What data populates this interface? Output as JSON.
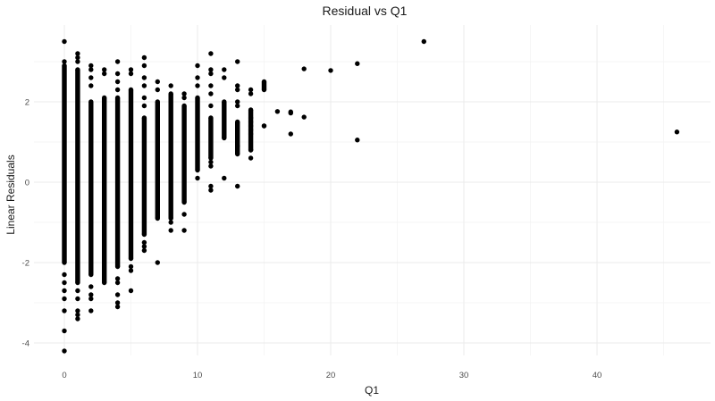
{
  "chart_data": {
    "type": "scatter",
    "title": "Residual vs Q1",
    "xlabel": "Q1",
    "ylabel": "Linear Residuals",
    "xlim": [
      -2.3,
      48.3
    ],
    "ylim": [
      -4.6,
      3.6
    ],
    "x_ticks": [
      0,
      10,
      20,
      30,
      40
    ],
    "x_tick_labels": [
      "0",
      "10",
      "20",
      "30",
      "40"
    ],
    "y_ticks": [
      -4,
      -2,
      0,
      2
    ],
    "y_tick_labels": [
      "-4",
      "-2",
      "0",
      "2"
    ],
    "grid": true,
    "legend": "none",
    "point_color": "#000000",
    "columns": [
      {
        "x": 0,
        "dense_min": -2.0,
        "dense_max": 2.9,
        "outliers": [
          3.5,
          3.0,
          -2.3,
          -2.5,
          -2.7,
          -2.9,
          -3.2,
          -3.7,
          -4.2
        ]
      },
      {
        "x": 1,
        "dense_min": -2.5,
        "dense_max": 2.8,
        "outliers": [
          3.2,
          3.1,
          3.0,
          -2.7,
          -2.9,
          -3.2,
          -3.3,
          -3.4
        ]
      },
      {
        "x": 2,
        "dense_min": -2.3,
        "dense_max": 2.0,
        "outliers": [
          2.9,
          2.8,
          2.6,
          2.4,
          -2.6,
          -2.8,
          -2.9,
          -3.2
        ]
      },
      {
        "x": 3,
        "dense_min": -2.5,
        "dense_max": 2.1,
        "outliers": [
          2.8,
          2.7
        ]
      },
      {
        "x": 4,
        "dense_min": -2.1,
        "dense_max": 2.1,
        "outliers": [
          3.0,
          2.7,
          2.5,
          2.3,
          -2.4,
          -2.5,
          -2.8,
          -3.0,
          -3.1
        ]
      },
      {
        "x": 5,
        "dense_min": -1.9,
        "dense_max": 2.3,
        "outliers": [
          2.8,
          2.7,
          -2.1,
          -2.2,
          -2.7
        ]
      },
      {
        "x": 6,
        "dense_min": -1.3,
        "dense_max": 1.6,
        "outliers": [
          3.1,
          2.9,
          2.6,
          2.4,
          2.1,
          1.9,
          -1.5,
          -1.6,
          -1.7
        ]
      },
      {
        "x": 7,
        "dense_min": -0.9,
        "dense_max": 2.0,
        "outliers": [
          2.5,
          2.3,
          -2.0
        ]
      },
      {
        "x": 8,
        "dense_min": -0.9,
        "dense_max": 2.2,
        "outliers": [
          2.4,
          -1.0,
          -1.2
        ]
      },
      {
        "x": 9,
        "dense_min": -0.5,
        "dense_max": 1.9,
        "outliers": [
          2.2,
          2.1,
          -0.8,
          -1.2
        ]
      },
      {
        "x": 10,
        "dense_min": 0.3,
        "dense_max": 2.1,
        "outliers": [
          2.9,
          2.6,
          2.4,
          0.1
        ]
      },
      {
        "x": 11,
        "dense_min": 0.6,
        "dense_max": 1.6,
        "outliers": [
          3.2,
          2.8,
          2.7,
          2.4,
          2.2,
          1.9,
          0.5,
          0.4,
          -0.1,
          -0.2
        ]
      },
      {
        "x": 12,
        "dense_min": 1.1,
        "dense_max": 2.0,
        "outliers": [
          2.8,
          2.6,
          0.1
        ]
      },
      {
        "x": 13,
        "dense_min": 0.7,
        "dense_max": 1.5,
        "outliers": [
          3.0,
          2.3,
          2.4,
          2.0,
          1.9,
          0.9,
          -0.1
        ]
      },
      {
        "x": 14,
        "dense_min": 0.8,
        "dense_max": 1.8,
        "outliers": [
          2.3,
          2.2,
          1.6,
          1.5,
          1.4,
          1.3,
          1.2,
          0.8,
          0.6
        ]
      },
      {
        "x": 15,
        "dense_min": 2.3,
        "dense_max": 2.5,
        "outliers": [
          1.4,
          1.4
        ]
      }
    ],
    "points": [
      {
        "x": 16,
        "y": 1.76
      },
      {
        "x": 17,
        "y": 1.75
      },
      {
        "x": 17,
        "y": 1.72
      },
      {
        "x": 17,
        "y": 1.2
      },
      {
        "x": 18,
        "y": 2.82
      },
      {
        "x": 18,
        "y": 1.62
      },
      {
        "x": 20,
        "y": 2.78
      },
      {
        "x": 22,
        "y": 2.95
      },
      {
        "x": 22,
        "y": 1.05
      },
      {
        "x": 27,
        "y": 3.5
      },
      {
        "x": 46,
        "y": 1.25
      }
    ]
  }
}
